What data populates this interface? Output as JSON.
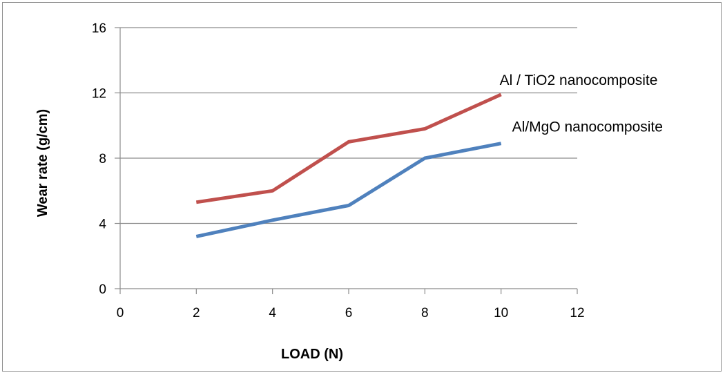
{
  "chart_data": {
    "type": "line",
    "xlabel": "LOAD  (N)",
    "ylabel": "Wear rate (g/cm)",
    "xlim": [
      0,
      12
    ],
    "ylim": [
      0,
      16
    ],
    "xticks": [
      0,
      2,
      4,
      6,
      8,
      10,
      12
    ],
    "yticks": [
      0,
      4,
      8,
      12,
      16
    ],
    "grid": "horizontal",
    "legend": "inline labels at line ends",
    "series": [
      {
        "name": "Al / TiO2 nanocomposite",
        "color": "#c0504d",
        "x": [
          2,
          4,
          6,
          8,
          10
        ],
        "y": [
          5.3,
          6.0,
          9.0,
          9.8,
          11.9
        ]
      },
      {
        "name": "Al/MgO nanocomposite",
        "color": "#4f81bd",
        "x": [
          2,
          4,
          6,
          8,
          10
        ],
        "y": [
          3.2,
          4.2,
          5.1,
          8.0,
          8.9
        ]
      }
    ]
  }
}
